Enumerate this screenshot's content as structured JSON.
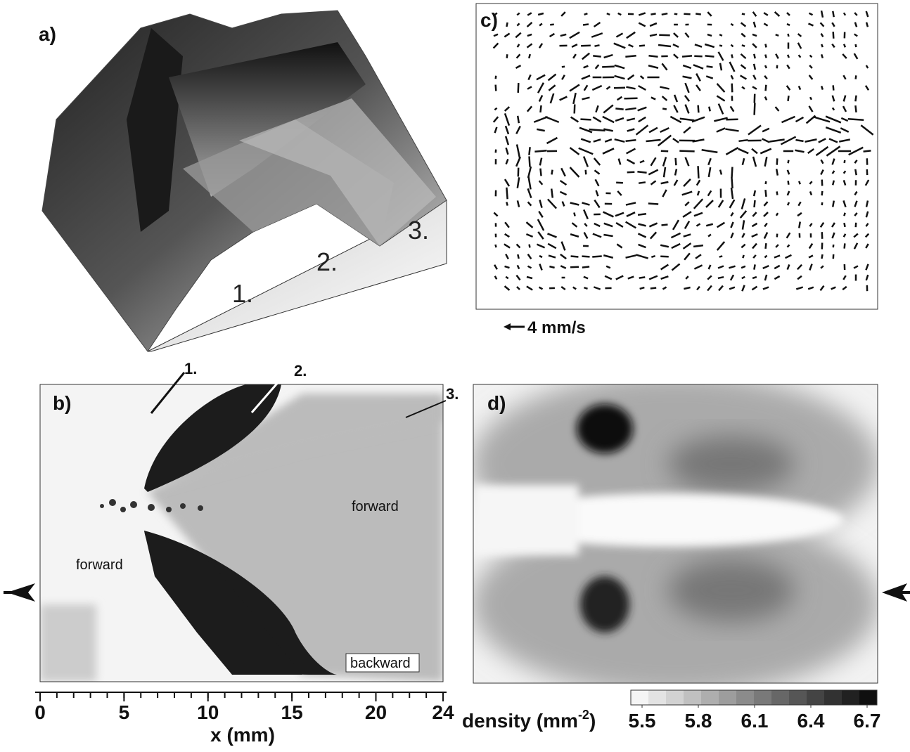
{
  "panels": {
    "a": {
      "label": "a)",
      "annotations": [
        "1.",
        "2.",
        "3."
      ]
    },
    "b": {
      "label": "b)",
      "annotations": [
        "1.",
        "2.",
        "3."
      ],
      "regions": [
        "forward",
        "forward",
        "backward"
      ]
    },
    "c": {
      "label": "c)",
      "scale": "4 mm/s"
    },
    "d": {
      "label": "d)"
    }
  },
  "x_axis": {
    "label": "x (mm)",
    "range": [
      0,
      24
    ],
    "ticks": [
      0,
      5,
      10,
      15,
      20,
      24
    ]
  },
  "colorbar": {
    "label": "density (mm",
    "label_sup": "-2",
    "label_end": ")",
    "range": [
      5.5,
      6.7
    ],
    "ticks": [
      5.5,
      5.8,
      6.1,
      6.4,
      6.7
    ]
  }
}
